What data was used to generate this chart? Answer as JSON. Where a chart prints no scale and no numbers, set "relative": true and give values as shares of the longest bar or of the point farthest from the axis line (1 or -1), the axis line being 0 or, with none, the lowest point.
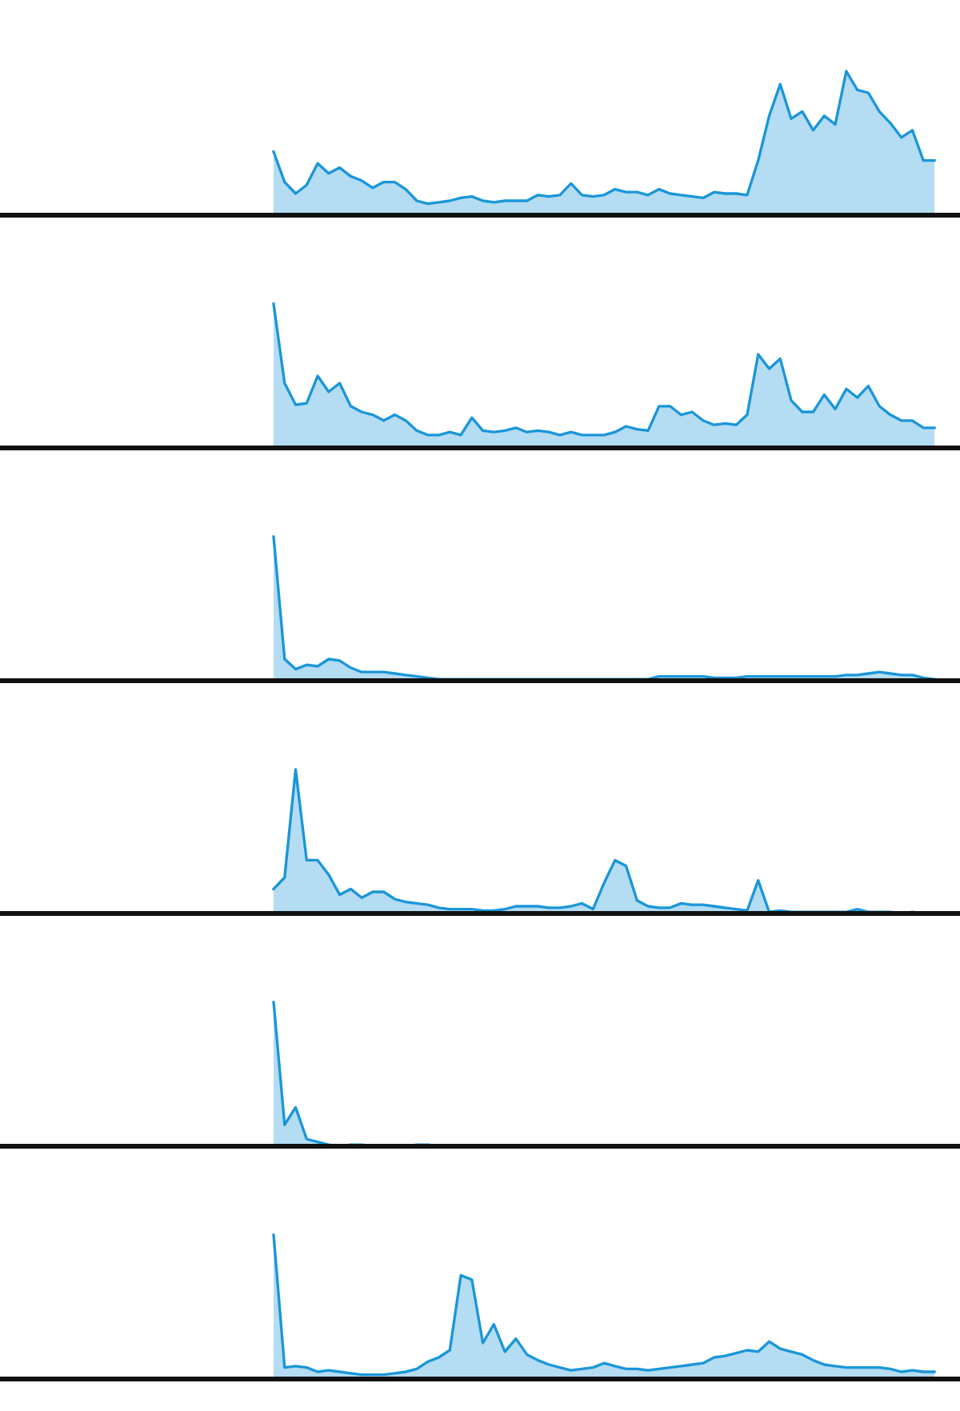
{
  "chart_data": [
    {
      "type": "area",
      "relative": true,
      "categories": [
        null,
        null,
        null,
        null,
        null,
        null,
        null,
        null,
        null,
        null,
        null,
        null,
        null,
        null,
        null,
        null,
        null,
        null,
        null,
        null,
        null,
        null,
        null,
        null,
        null,
        null,
        null,
        null,
        null,
        null,
        null,
        null,
        null,
        null,
        null,
        null,
        null,
        null,
        null,
        null,
        null,
        null,
        null,
        null,
        null,
        null,
        null,
        null,
        null,
        null,
        null,
        null,
        null,
        null,
        null,
        null,
        null,
        null,
        null,
        null,
        null
      ],
      "series": [
        {
          "color": "#1a96d8",
          "values": [
            0.44,
            0.23,
            0.15,
            0.21,
            0.36,
            0.29,
            0.33,
            0.27,
            0.24,
            0.19,
            0.23,
            0.23,
            0.18,
            0.1,
            0.08,
            0.09,
            0.1,
            0.12,
            0.13,
            0.1,
            0.09,
            0.1,
            0.1,
            0.1,
            0.14,
            0.13,
            0.14,
            0.22,
            0.14,
            0.13,
            0.14,
            0.18,
            0.16,
            0.16,
            0.14,
            0.18,
            0.15,
            0.14,
            0.13,
            0.12,
            0.16,
            0.15,
            0.15,
            0.14,
            0.38,
            0.69,
            0.91,
            0.67,
            0.72,
            0.59,
            0.69,
            0.63,
            1.0,
            0.87,
            0.85,
            0.72,
            0.64,
            0.54,
            0.59,
            0.38,
            0.38
          ]
        }
      ]
    },
    {
      "type": "area",
      "relative": true,
      "categories": [
        null,
        null,
        null,
        null,
        null,
        null,
        null,
        null,
        null,
        null,
        null,
        null,
        null,
        null,
        null,
        null,
        null,
        null,
        null,
        null,
        null,
        null,
        null,
        null,
        null,
        null,
        null,
        null,
        null,
        null,
        null,
        null,
        null,
        null,
        null,
        null,
        null,
        null,
        null,
        null,
        null,
        null,
        null,
        null,
        null,
        null,
        null,
        null,
        null,
        null,
        null,
        null,
        null,
        null,
        null,
        null,
        null,
        null,
        null,
        null,
        null
      ],
      "series": [
        {
          "color": "#1a96d8",
          "values": [
            1.0,
            0.45,
            0.3,
            0.31,
            0.5,
            0.39,
            0.45,
            0.29,
            0.25,
            0.23,
            0.19,
            0.23,
            0.19,
            0.12,
            0.09,
            0.09,
            0.11,
            0.09,
            0.21,
            0.12,
            0.11,
            0.12,
            0.14,
            0.11,
            0.12,
            0.11,
            0.09,
            0.11,
            0.09,
            0.09,
            0.09,
            0.11,
            0.15,
            0.13,
            0.12,
            0.29,
            0.29,
            0.23,
            0.25,
            0.19,
            0.16,
            0.17,
            0.16,
            0.23,
            0.65,
            0.55,
            0.62,
            0.33,
            0.25,
            0.25,
            0.37,
            0.27,
            0.41,
            0.35,
            0.43,
            0.29,
            0.23,
            0.19,
            0.19,
            0.14,
            0.14
          ]
        }
      ]
    },
    {
      "type": "area",
      "relative": true,
      "categories": [
        null,
        null,
        null,
        null,
        null,
        null,
        null,
        null,
        null,
        null,
        null,
        null,
        null,
        null,
        null,
        null,
        null,
        null,
        null,
        null,
        null,
        null,
        null,
        null,
        null,
        null,
        null,
        null,
        null,
        null,
        null,
        null,
        null,
        null,
        null,
        null,
        null,
        null,
        null,
        null,
        null,
        null,
        null,
        null,
        null,
        null,
        null,
        null,
        null,
        null,
        null,
        null,
        null,
        null,
        null,
        null,
        null,
        null,
        null,
        null,
        null
      ],
      "series": [
        {
          "color": "#1a96d8",
          "values": [
            1.0,
            0.15,
            0.08,
            0.11,
            0.1,
            0.15,
            0.14,
            0.09,
            0.06,
            0.06,
            0.06,
            0.05,
            0.04,
            0.03,
            0.02,
            0.01,
            0.01,
            0.01,
            0.01,
            0.01,
            0.01,
            0.01,
            0.01,
            0.01,
            0.01,
            0.01,
            0.01,
            0.01,
            0.01,
            0.01,
            0.01,
            0.01,
            0.01,
            0.01,
            0.01,
            0.03,
            0.03,
            0.03,
            0.03,
            0.03,
            0.02,
            0.02,
            0.02,
            0.03,
            0.03,
            0.03,
            0.03,
            0.03,
            0.03,
            0.03,
            0.03,
            0.03,
            0.04,
            0.04,
            0.05,
            0.06,
            0.05,
            0.04,
            0.04,
            0.02,
            0.01
          ]
        }
      ]
    },
    {
      "type": "area",
      "relative": true,
      "categories": [
        null,
        null,
        null,
        null,
        null,
        null,
        null,
        null,
        null,
        null,
        null,
        null,
        null,
        null,
        null,
        null,
        null,
        null,
        null,
        null,
        null,
        null,
        null,
        null,
        null,
        null,
        null,
        null,
        null,
        null,
        null,
        null,
        null,
        null,
        null,
        null,
        null,
        null,
        null,
        null,
        null,
        null,
        null,
        null,
        null,
        null,
        null,
        null,
        null,
        null,
        null,
        null,
        null,
        null,
        null,
        null,
        null,
        null,
        null,
        null,
        null
      ],
      "series": [
        {
          "color": "#1a96d8",
          "values": [
            0.17,
            0.25,
            1.0,
            0.37,
            0.37,
            0.27,
            0.13,
            0.17,
            0.11,
            0.15,
            0.15,
            0.1,
            0.08,
            0.07,
            0.06,
            0.04,
            0.03,
            0.03,
            0.03,
            0.02,
            0.02,
            0.03,
            0.05,
            0.05,
            0.05,
            0.04,
            0.04,
            0.05,
            0.07,
            0.03,
            0.21,
            0.37,
            0.33,
            0.09,
            0.05,
            0.04,
            0.04,
            0.07,
            0.06,
            0.06,
            0.05,
            0.04,
            0.03,
            0.02,
            0.23,
            0.01,
            0.02,
            0.01,
            0.01,
            0.01,
            0.01,
            0.01,
            0.01,
            0.03,
            0.01,
            0.01,
            0.01,
            0.0,
            0.01,
            0.0,
            0.0
          ]
        }
      ]
    },
    {
      "type": "area",
      "relative": true,
      "categories": [
        null,
        null,
        null,
        null,
        null,
        null,
        null,
        null,
        null,
        null,
        null,
        null,
        null,
        null,
        null,
        null,
        null,
        null,
        null,
        null,
        null,
        null,
        null,
        null,
        null,
        null,
        null,
        null,
        null,
        null,
        null,
        null,
        null,
        null,
        null,
        null,
        null,
        null,
        null,
        null,
        null,
        null,
        null,
        null,
        null,
        null,
        null,
        null,
        null,
        null,
        null,
        null,
        null,
        null,
        null,
        null,
        null,
        null,
        null,
        null,
        null
      ],
      "series": [
        {
          "color": "#1a96d8",
          "values": [
            1.0,
            0.15,
            0.27,
            0.05,
            0.03,
            0.01,
            0.0,
            0.01,
            0.01,
            0.0,
            0.0,
            0.0,
            0.0,
            0.01,
            0.01,
            0.0,
            0.0,
            0.0,
            0.0,
            0.0,
            0.0,
            0.0,
            0.0,
            0.0,
            0.0,
            0.0,
            0.0,
            0.0,
            0.0,
            0.0,
            0.0,
            0.0,
            0.0,
            0.0,
            0.0,
            0.0,
            0.0,
            0.0,
            0.0,
            0.0,
            0.0,
            0.0,
            0.0,
            0.0,
            0.0,
            0.0,
            0.0,
            0.0,
            0.0,
            0.0,
            0.0,
            0.0,
            0.0,
            0.0,
            0.0,
            0.0,
            0.0,
            0.0,
            0.0,
            0.0,
            0.0
          ]
        }
      ]
    },
    {
      "type": "area",
      "relative": true,
      "categories": [
        null,
        null,
        null,
        null,
        null,
        null,
        null,
        null,
        null,
        null,
        null,
        null,
        null,
        null,
        null,
        null,
        null,
        null,
        null,
        null,
        null,
        null,
        null,
        null,
        null,
        null,
        null,
        null,
        null,
        null,
        null,
        null,
        null,
        null,
        null,
        null,
        null,
        null,
        null,
        null,
        null,
        null,
        null,
        null,
        null,
        null,
        null,
        null,
        null,
        null,
        null,
        null,
        null,
        null,
        null,
        null,
        null,
        null,
        null,
        null,
        null
      ],
      "series": [
        {
          "color": "#1a96d8",
          "values": [
            1.0,
            0.08,
            0.09,
            0.08,
            0.05,
            0.06,
            0.05,
            0.04,
            0.03,
            0.03,
            0.03,
            0.04,
            0.05,
            0.07,
            0.12,
            0.15,
            0.2,
            0.72,
            0.69,
            0.25,
            0.38,
            0.19,
            0.28,
            0.17,
            0.13,
            0.1,
            0.08,
            0.06,
            0.07,
            0.08,
            0.11,
            0.09,
            0.07,
            0.07,
            0.06,
            0.07,
            0.08,
            0.09,
            0.1,
            0.11,
            0.15,
            0.16,
            0.18,
            0.2,
            0.19,
            0.26,
            0.21,
            0.19,
            0.17,
            0.13,
            0.1,
            0.09,
            0.08,
            0.08,
            0.08,
            0.08,
            0.07,
            0.05,
            0.06,
            0.05,
            0.05
          ]
        }
      ]
    }
  ]
}
